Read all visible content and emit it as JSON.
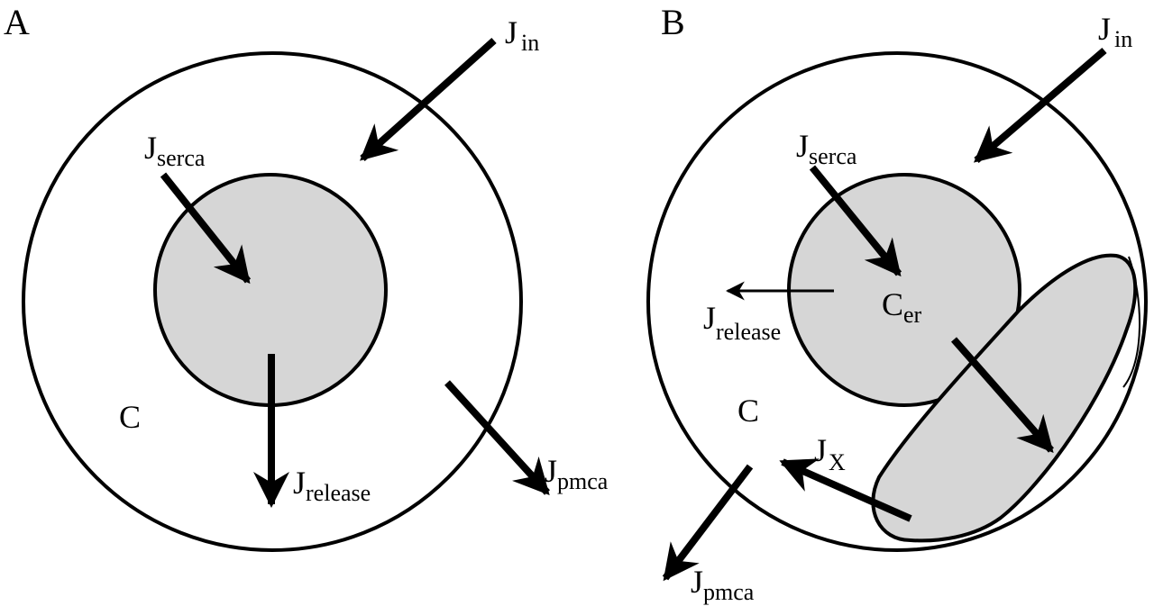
{
  "panels": {
    "a": {
      "letter": "A",
      "compartment_label": "C",
      "fluxes": {
        "in": {
          "main": "J",
          "sub": "in"
        },
        "serca": {
          "main": "J",
          "sub": "serca"
        },
        "release": {
          "main": "J",
          "sub": "release"
        },
        "pmca": {
          "main": "J",
          "sub": "pmca"
        }
      }
    },
    "b": {
      "letter": "B",
      "compartment_label": "C",
      "er_label": {
        "main": "C",
        "sub": "er"
      },
      "fluxes": {
        "in": {
          "main": "J",
          "sub": "in"
        },
        "serca": {
          "main": "J",
          "sub": "serca"
        },
        "release": {
          "main": "J",
          "sub": "release"
        },
        "x": {
          "main": "J",
          "sub": "X"
        },
        "pmca": {
          "main": "J",
          "sub": "pmca"
        }
      }
    }
  },
  "colors": {
    "stroke": "#000000",
    "fill_compartment": "#d6d6d6",
    "background": "#ffffff"
  }
}
